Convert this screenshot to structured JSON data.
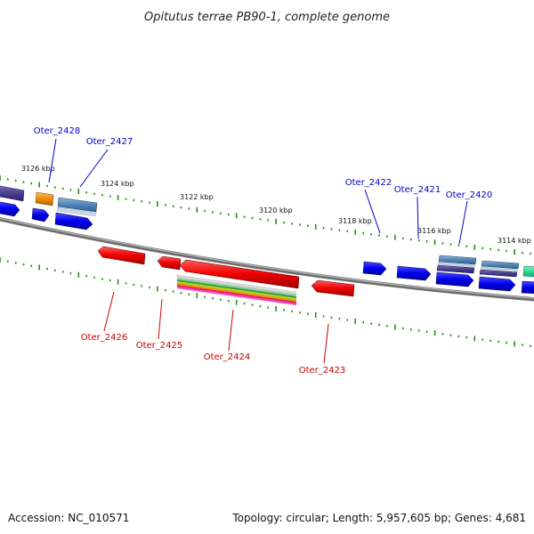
{
  "title": "Opitutus terrae PB90-1, complete genome",
  "footer": {
    "accession": "Accession: NC_010571",
    "summary": "Topology: circular; Length: 5,957,605 bp; Genes: 4,681"
  },
  "colors": {
    "forward_label": "#0000cc",
    "reverse_label": "#cc0000",
    "backbone": "#808080",
    "tick": "#2e8b1e"
  },
  "position_labels": [
    "3126 kbp",
    "3124 kbp",
    "3122 kbp",
    "3120 kbp",
    "3118 kbp",
    "3116 kbp",
    "3114 kbp"
  ],
  "gene_labels_forward": [
    "Oter_2428",
    "Oter_2427",
    "Oter_2422",
    "Oter_2421",
    "Oter_2420"
  ],
  "gene_labels_reverse": [
    "Oter_2426",
    "Oter_2425",
    "Oter_2424",
    "Oter_2423"
  ]
}
